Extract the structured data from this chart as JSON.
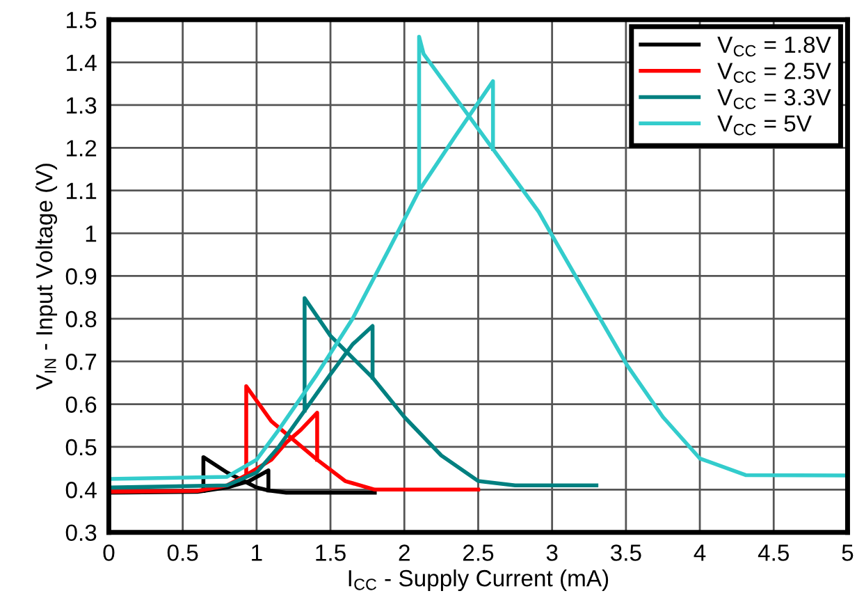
{
  "chart_data": {
    "type": "line",
    "xlabel": "I$_{CC}$ - Supply Current (mA)",
    "ylabel": "V$_{IN}$ - Input Voltage (V)",
    "xlim": [
      0,
      5
    ],
    "xticks": [
      0,
      0.5,
      1,
      1.5,
      2,
      2.5,
      3,
      3.5,
      4,
      4.5,
      5
    ],
    "ylim": [
      0.3,
      1.5
    ],
    "yticks": [
      0.3,
      0.4,
      0.5,
      0.6,
      0.7,
      0.8,
      0.9,
      1,
      1.1,
      1.2,
      1.3,
      1.4,
      1.5
    ],
    "grid": true,
    "legend": "top right",
    "marker": "none",
    "line_style": "solid",
    "series": [
      {
        "name": "V$_{CC}$ = 1.8V",
        "color": "#000000",
        "x": [
          0,
          0.6,
          0.64,
          0.8,
          0.95,
          1.08,
          1.08
        ],
        "values": [
          0.393,
          0.395,
          0.397,
          0.405,
          0.42,
          0.445,
          0.398
        ]
      },
      {
        "color": "#000000",
        "x": [
          0.64,
          0.64,
          0.8,
          1.0,
          1.08,
          1.2,
          1.8
        ],
        "values": [
          0.397,
          0.476,
          0.44,
          0.405,
          0.398,
          0.393,
          0.393
        ]
      },
      {
        "name": "V$_{CC}$ = 2.5V",
        "color": "#ff0000",
        "x": [
          0,
          0.6,
          0.8,
          0.93,
          1.1,
          1.2,
          1.3,
          1.41,
          1.41
        ],
        "values": [
          0.395,
          0.397,
          0.41,
          0.434,
          0.47,
          0.51,
          0.54,
          0.58,
          0.47
        ]
      },
      {
        "color": "#ff0000",
        "x": [
          0.93,
          0.93,
          1.1,
          1.41,
          1.6,
          1.8,
          2.5
        ],
        "values": [
          0.434,
          0.642,
          0.56,
          0.47,
          0.42,
          0.4,
          0.4
        ]
      },
      {
        "name": "V$_{CC}$ = 3.3V",
        "color": "#008080",
        "x": [
          0,
          0.8,
          1.0,
          1.15,
          1.325,
          1.5,
          1.65,
          1.785,
          1.785
        ],
        "values": [
          0.405,
          0.41,
          0.44,
          0.5,
          0.585,
          0.67,
          0.74,
          0.783,
          0.662
        ]
      },
      {
        "color": "#008080",
        "x": [
          1.325,
          1.325,
          1.5,
          1.785,
          2.0,
          2.25,
          2.5,
          2.75,
          3.3
        ],
        "values": [
          0.585,
          0.848,
          0.76,
          0.662,
          0.57,
          0.48,
          0.42,
          0.41,
          0.41
        ]
      },
      {
        "name": "V$_{CC}$ = 5V",
        "color": "#33cccc",
        "x": [
          0,
          0.8,
          1.0,
          1.15,
          1.4,
          1.65,
          1.9,
          2.1,
          2.35,
          2.6,
          2.6
        ],
        "values": [
          0.425,
          0.43,
          0.47,
          0.54,
          0.665,
          0.8,
          0.965,
          1.1,
          1.23,
          1.356,
          1.197
        ]
      },
      {
        "color": "#33cccc",
        "x": [
          2.1,
          2.1,
          2.13,
          2.6,
          2.91,
          3.0,
          3.25,
          3.51,
          3.75,
          4.0,
          4.31,
          5
        ],
        "values": [
          1.1,
          1.46,
          1.42,
          1.197,
          1.05,
          0.995,
          0.845,
          0.69,
          0.57,
          0.473,
          0.434,
          0.433
        ]
      }
    ]
  }
}
